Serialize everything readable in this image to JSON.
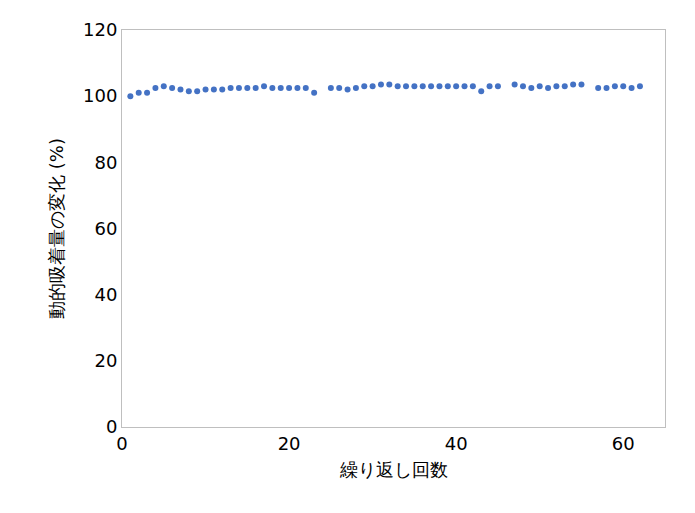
{
  "chart_data": {
    "type": "scatter",
    "x_label": "繰り返し回数",
    "y_label": "動的吸着量の変化 (%)",
    "x": [
      1,
      2,
      3,
      4,
      5,
      6,
      7,
      8,
      9,
      10,
      11,
      12,
      13,
      14,
      15,
      16,
      17,
      18,
      19,
      20,
      21,
      22,
      23,
      25,
      26,
      27,
      28,
      29,
      30,
      31,
      32,
      33,
      34,
      35,
      36,
      37,
      38,
      39,
      40,
      41,
      42,
      43,
      44,
      45,
      47,
      48,
      49,
      50,
      51,
      52,
      53,
      54,
      55,
      57,
      58,
      59,
      60,
      61,
      62
    ],
    "values": [
      100,
      101,
      101,
      102.5,
      103,
      102.5,
      102,
      101.5,
      101.5,
      102,
      102,
      102,
      102.5,
      102.5,
      102.5,
      102.5,
      103,
      102.5,
      102.5,
      102.5,
      102.5,
      102.5,
      101,
      102.5,
      102.5,
      102,
      102.5,
      103,
      103,
      103.5,
      103.5,
      103,
      103,
      103,
      103,
      103,
      103,
      103,
      103,
      103,
      103,
      101.5,
      103,
      103,
      103.5,
      103,
      102.5,
      103,
      102.5,
      103,
      103,
      103.5,
      103.5,
      102.5,
      102.5,
      103,
      103,
      102.5,
      103
    ],
    "color": "#4472c4",
    "marker": "circle",
    "xlim": [
      0,
      65
    ],
    "xticks": [
      0,
      20,
      40,
      60
    ],
    "ylim": [
      0,
      120
    ],
    "yticks": [
      0,
      20,
      40,
      60,
      80,
      100,
      120
    ],
    "grid": false
  }
}
